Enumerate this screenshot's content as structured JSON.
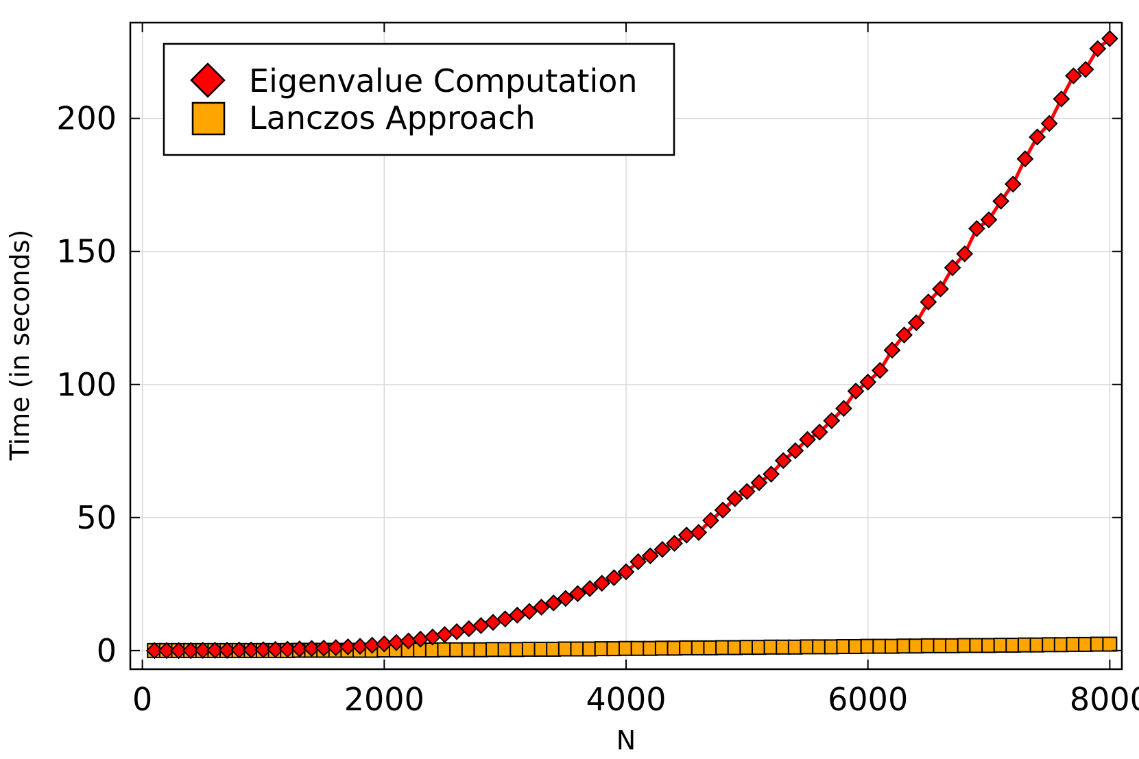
{
  "chart_data": {
    "type": "line",
    "title": "",
    "xlabel": "N",
    "ylabel": "Time (in seconds)",
    "xlim": [
      -100,
      8100
    ],
    "ylim": [
      -7,
      236
    ],
    "xticks": [
      0,
      2000,
      4000,
      6000,
      8000
    ],
    "yticks": [
      0,
      50,
      100,
      150,
      200
    ],
    "xtick_labels": [
      "0",
      "2000",
      "4000",
      "6000",
      "8000"
    ],
    "ytick_labels": [
      "0",
      "50",
      "100",
      "150",
      "200"
    ],
    "grid": true,
    "legend_position": "top-left",
    "x": [
      100,
      200,
      300,
      400,
      500,
      600,
      700,
      800,
      900,
      1000,
      1100,
      1200,
      1300,
      1400,
      1500,
      1600,
      1700,
      1800,
      1900,
      2000,
      2100,
      2200,
      2300,
      2400,
      2500,
      2600,
      2700,
      2800,
      2900,
      3000,
      3100,
      3200,
      3300,
      3400,
      3500,
      3600,
      3700,
      3800,
      3900,
      4000,
      4100,
      4200,
      4300,
      4400,
      4500,
      4600,
      4700,
      4800,
      4900,
      5000,
      5100,
      5200,
      5300,
      5400,
      5500,
      5600,
      5700,
      5800,
      5900,
      6000,
      6100,
      6200,
      6300,
      6400,
      6500,
      6600,
      6700,
      6800,
      6900,
      7000,
      7100,
      7200,
      7300,
      7400,
      7500,
      7600,
      7700,
      7800,
      7900,
      8000
    ],
    "series": [
      {
        "name": "Eigenvalue Computation",
        "color": "#ff0000",
        "marker": "diamond",
        "values": [
          0,
          0,
          0,
          0,
          0.1,
          0.1,
          0.1,
          0.2,
          0.2,
          0.3,
          0.4,
          0.5,
          0.6,
          0.8,
          0.9,
          1.1,
          1.4,
          1.6,
          2.0,
          2.5,
          3.0,
          3.6,
          4.3,
          5.1,
          6.0,
          7.1,
          8.2,
          9.4,
          10.6,
          11.9,
          13.3,
          14.7,
          16.3,
          17.9,
          19.6,
          21.4,
          23.3,
          25.3,
          27.4,
          29.6,
          33.4,
          35.6,
          38.0,
          40.3,
          43.4,
          44.4,
          48.9,
          52.8,
          57.1,
          59.8,
          63.1,
          66.3,
          71.4,
          75.1,
          79.3,
          82.1,
          86.4,
          91.0,
          97.5,
          100.9,
          105.3,
          112.9,
          118.6,
          123.2,
          131.0,
          135.9,
          143.9,
          149.1,
          158.6,
          161.9,
          168.9,
          175.3,
          184.8,
          193.0,
          198.1,
          207.3,
          216.0,
          218.4,
          226.2,
          230.0
        ]
      },
      {
        "name": "Lanczos Approach",
        "color": "#ffa500",
        "marker": "square",
        "values": [
          0,
          0,
          0,
          0,
          0,
          0,
          0,
          0,
          0,
          0,
          0,
          0,
          0.1,
          0.1,
          0.1,
          0.1,
          0.1,
          0.1,
          0.1,
          0.2,
          0.2,
          0.2,
          0.2,
          0.2,
          0.3,
          0.3,
          0.3,
          0.3,
          0.4,
          0.4,
          0.4,
          0.5,
          0.5,
          0.5,
          0.6,
          0.6,
          0.6,
          0.7,
          0.7,
          0.8,
          0.8,
          0.8,
          0.9,
          0.9,
          1.0,
          1.0,
          1.0,
          1.1,
          1.1,
          1.2,
          1.2,
          1.3,
          1.3,
          1.3,
          1.4,
          1.4,
          1.4,
          1.5,
          1.5,
          1.6,
          1.6,
          1.6,
          1.7,
          1.7,
          1.8,
          1.8,
          1.8,
          1.9,
          1.9,
          1.9,
          2.0,
          2.0,
          2.1,
          2.1,
          2.2,
          2.2,
          2.3,
          2.3,
          2.4,
          2.4
        ]
      }
    ]
  }
}
